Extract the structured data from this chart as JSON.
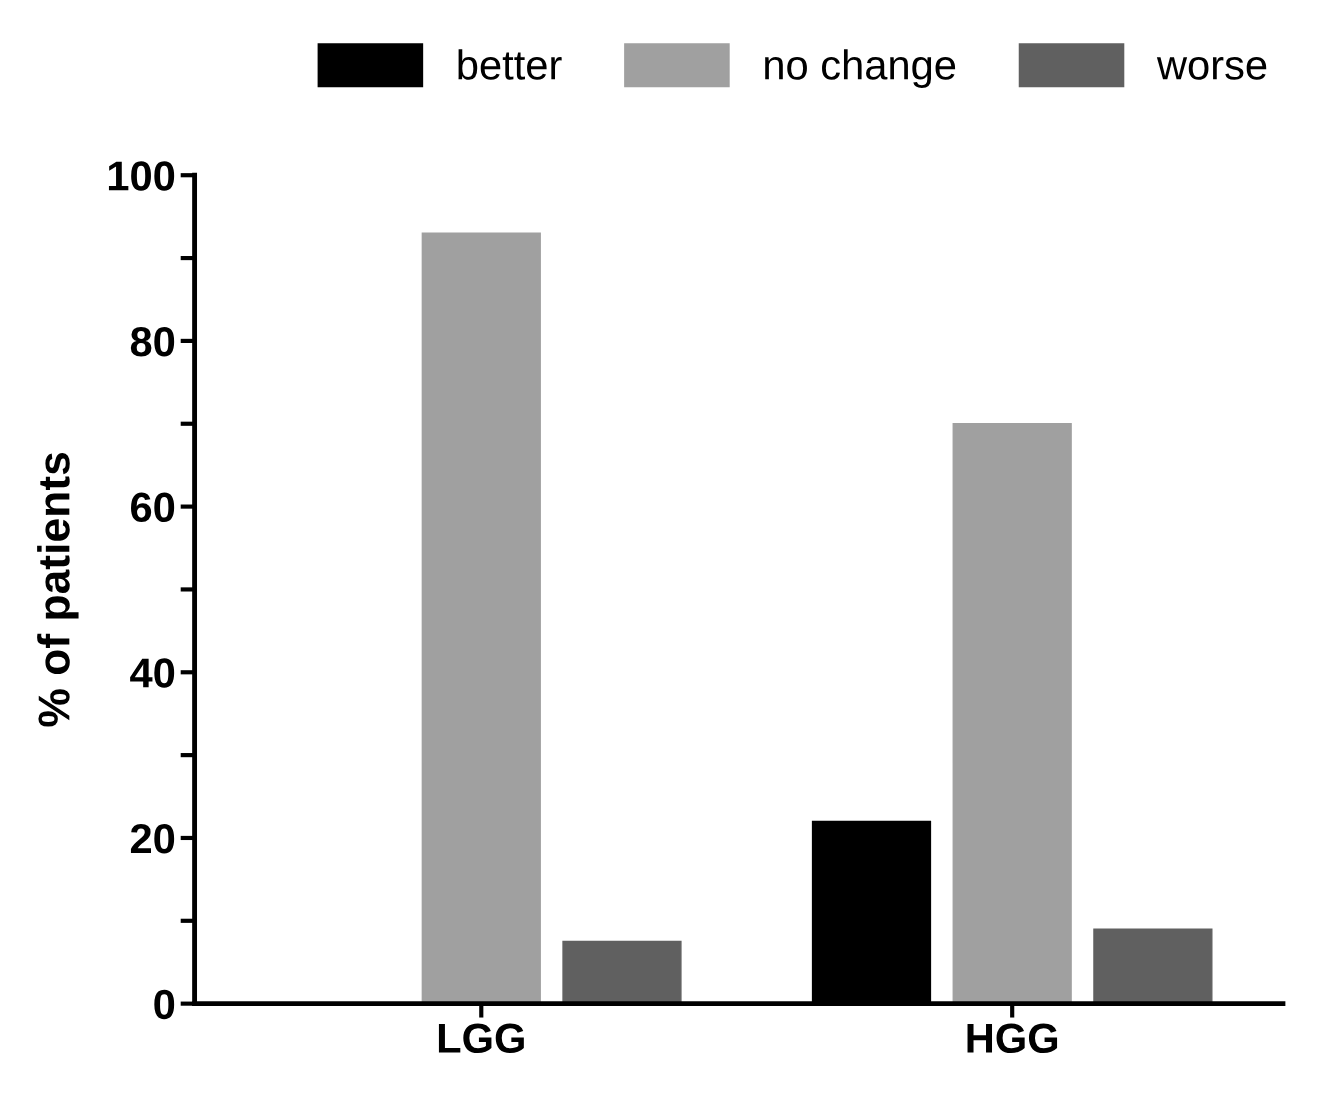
{
  "chart_data": {
    "type": "bar",
    "ylabel": "% of patients",
    "categories": [
      "LGG",
      "HGG"
    ],
    "series": [
      {
        "name": "better",
        "color": "#000000",
        "values": [
          0,
          22
        ]
      },
      {
        "name": "no change",
        "color": "#a0a0a0",
        "values": [
          93,
          70
        ]
      },
      {
        "name": "worse",
        "color": "#606060",
        "values": [
          7.5,
          9
        ]
      }
    ],
    "ylim": [
      0,
      100
    ],
    "yticks": [
      0,
      {
        "value": 10,
        "label": null
      },
      20,
      {
        "value": 30,
        "label": null
      },
      40,
      {
        "value": 50,
        "label": null
      },
      60,
      {
        "value": 70,
        "label": null
      },
      80,
      {
        "value": 90,
        "label": null
      },
      100
    ],
    "grid": false,
    "legend": "top"
  }
}
